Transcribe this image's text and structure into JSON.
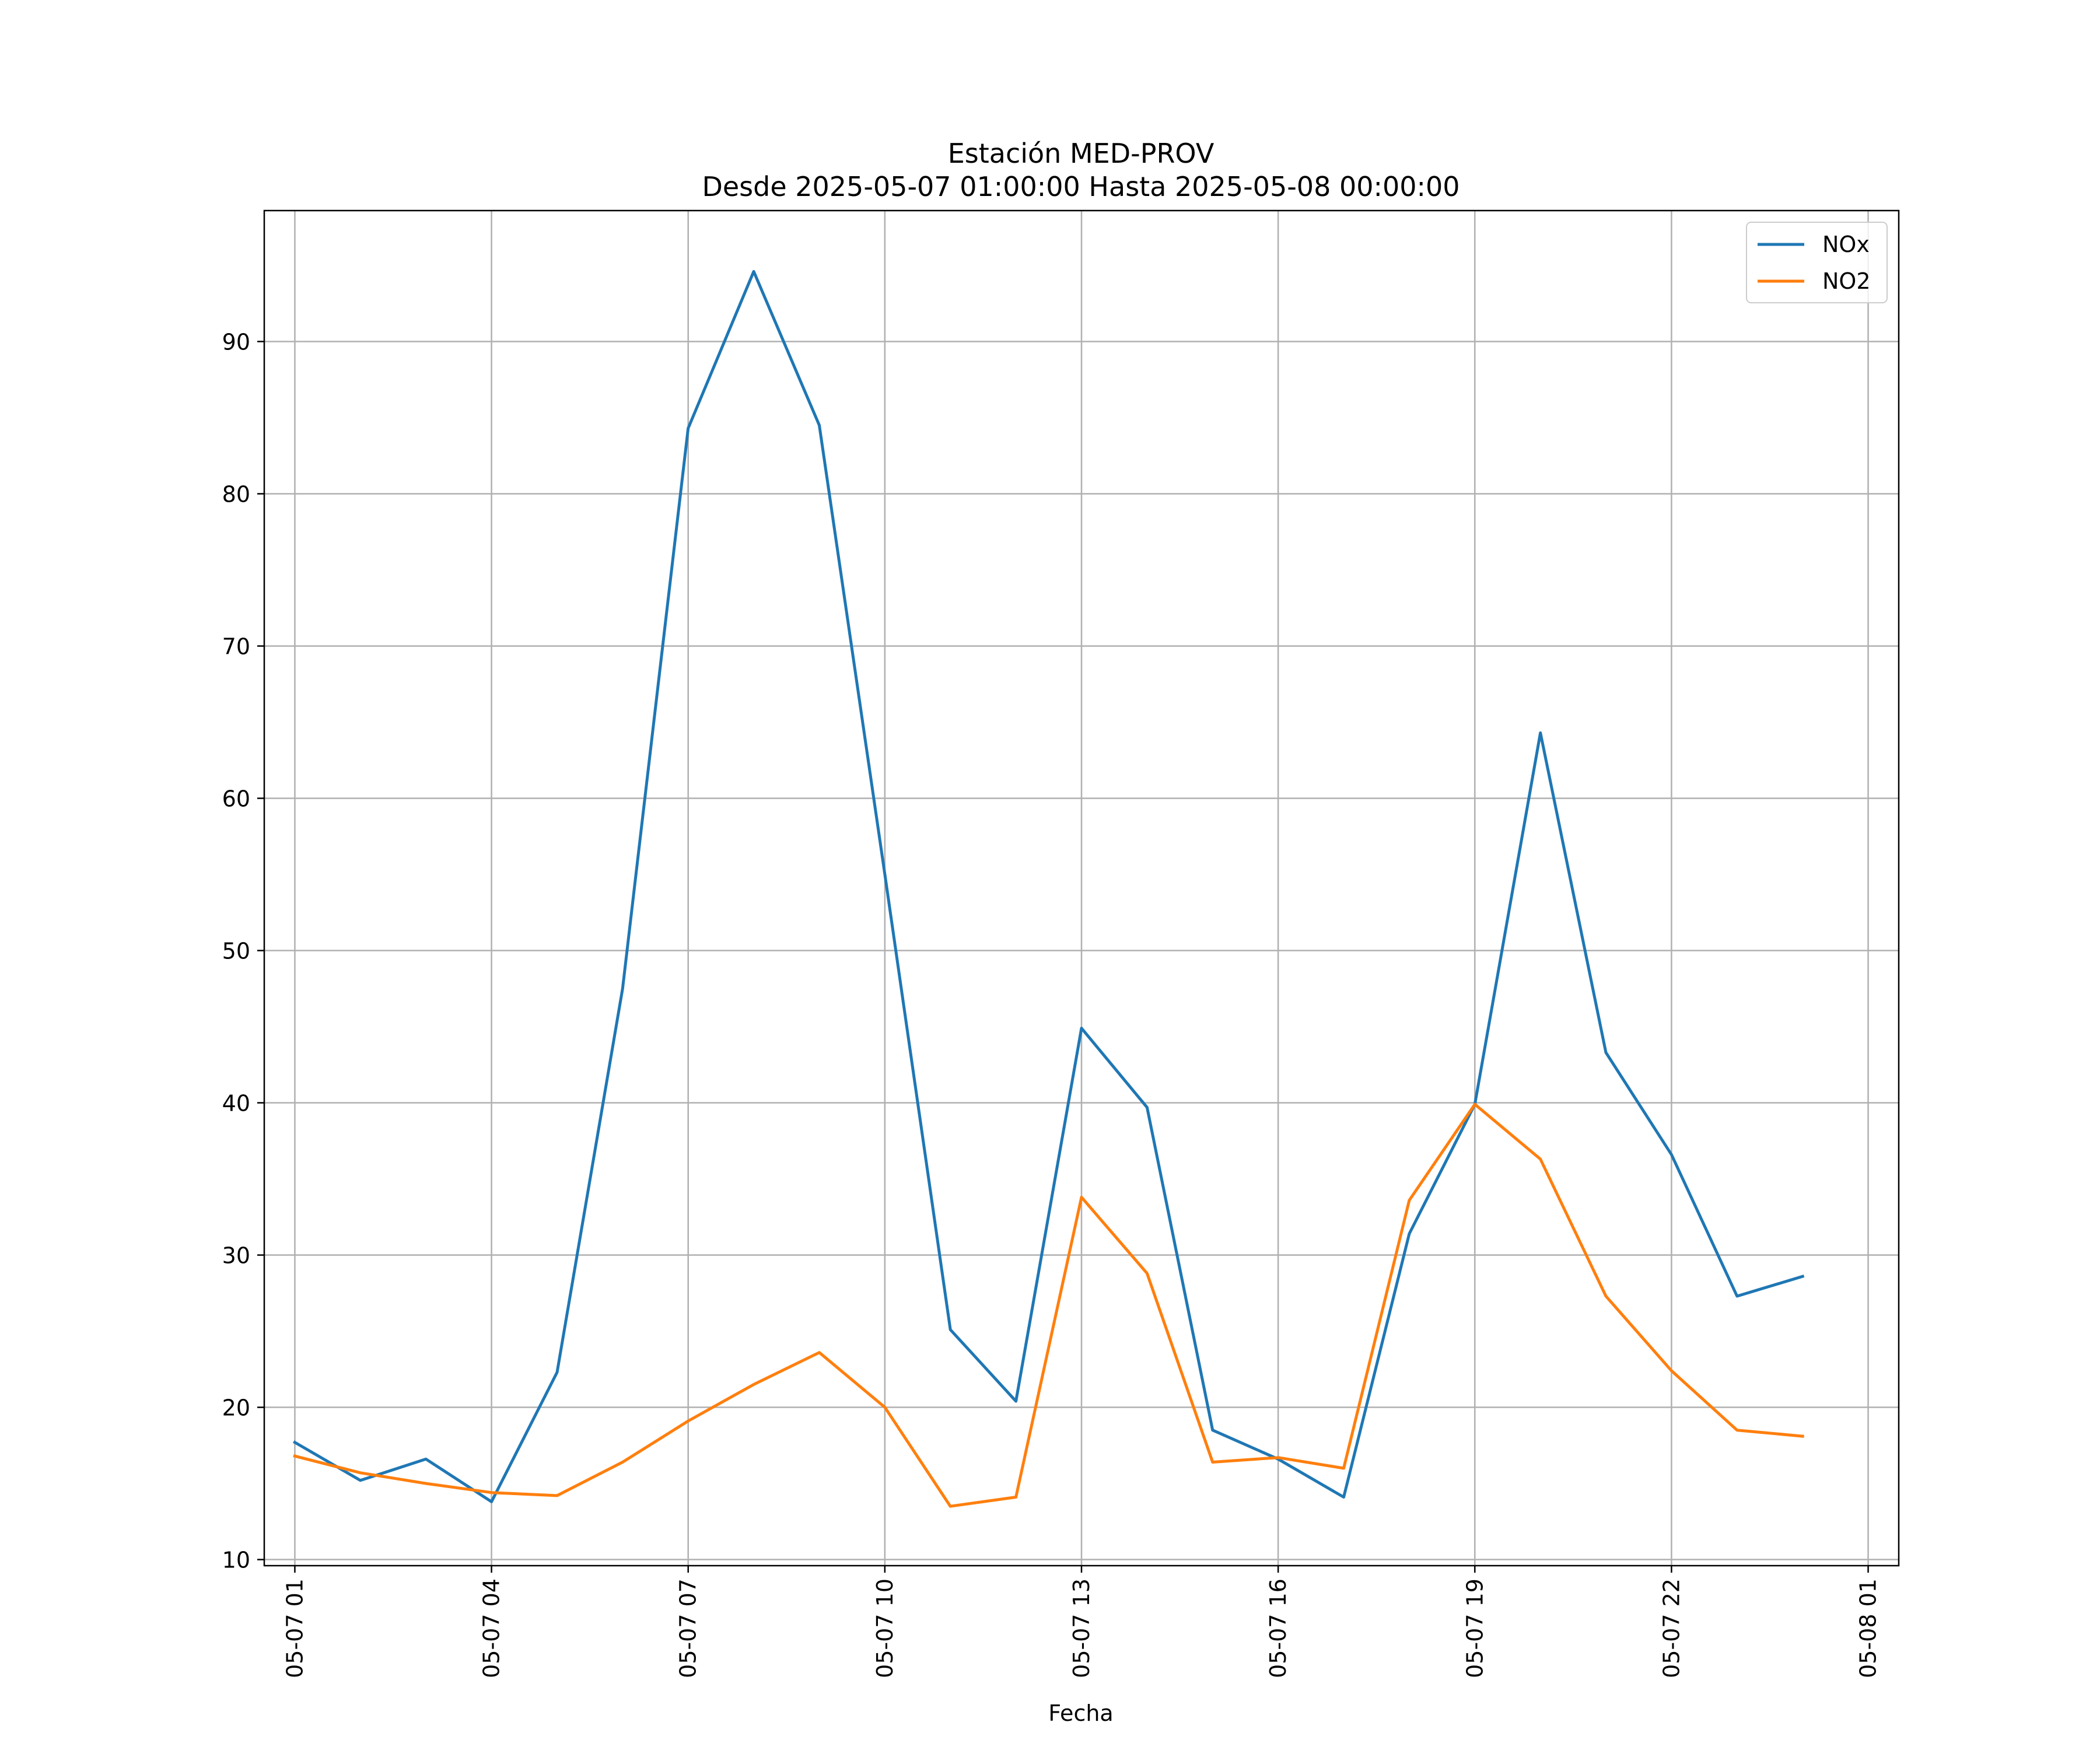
{
  "chart_data": {
    "type": "line",
    "title": "Estación MED-PROV",
    "subtitle": "Desde 2025-05-07 01:00:00 Hasta 2025-05-08 00:00:00",
    "xlabel": "Fecha",
    "ylabel": "",
    "x": [
      "2025-05-07 01:00",
      "2025-05-07 02:00",
      "2025-05-07 03:00",
      "2025-05-07 04:00",
      "2025-05-07 05:00",
      "2025-05-07 06:00",
      "2025-05-07 07:00",
      "2025-05-07 08:00",
      "2025-05-07 09:00",
      "2025-05-07 10:00",
      "2025-05-07 11:00",
      "2025-05-07 12:00",
      "2025-05-07 13:00",
      "2025-05-07 14:00",
      "2025-05-07 15:00",
      "2025-05-07 16:00",
      "2025-05-07 17:00",
      "2025-05-07 18:00",
      "2025-05-07 19:00",
      "2025-05-07 20:00",
      "2025-05-07 21:00",
      "2025-05-07 22:00",
      "2025-05-07 23:00",
      "2025-05-08 00:00"
    ],
    "series": [
      {
        "name": "NOx",
        "color": "#1f77b4",
        "values": [
          17.7,
          15.2,
          16.6,
          13.8,
          22.3,
          47.5,
          84.3,
          94.6,
          84.5,
          55.0,
          25.1,
          20.4,
          44.9,
          39.7,
          18.5,
          16.6,
          14.1,
          31.4,
          39.9,
          64.3,
          43.3,
          36.6,
          27.3,
          28.6
        ]
      },
      {
        "name": "NO2",
        "color": "#ff7f0e",
        "values": [
          16.8,
          15.7,
          15.0,
          14.4,
          14.2,
          16.4,
          19.1,
          21.5,
          23.6,
          20.0,
          13.5,
          14.1,
          33.8,
          28.8,
          16.4,
          16.7,
          16.0,
          33.6,
          39.9,
          36.3,
          27.3,
          22.4,
          18.5,
          18.1
        ]
      }
    ],
    "xlim": [
      "2025-05-07 00:32",
      "2025-05-08 01:28"
    ],
    "ylim": [
      9.6,
      98.6
    ],
    "x_ticks": [
      {
        "label": "05-07 01",
        "at": "2025-05-07 01:00"
      },
      {
        "label": "05-07 04",
        "at": "2025-05-07 04:00"
      },
      {
        "label": "05-07 07",
        "at": "2025-05-07 07:00"
      },
      {
        "label": "05-07 10",
        "at": "2025-05-07 10:00"
      },
      {
        "label": "05-07 13",
        "at": "2025-05-07 13:00"
      },
      {
        "label": "05-07 16",
        "at": "2025-05-07 16:00"
      },
      {
        "label": "05-07 19",
        "at": "2025-05-07 19:00"
      },
      {
        "label": "05-07 22",
        "at": "2025-05-07 22:00"
      },
      {
        "label": "05-08 01",
        "at": "2025-05-08 01:00"
      }
    ],
    "y_ticks": [
      10,
      20,
      30,
      40,
      50,
      60,
      70,
      80,
      90
    ],
    "grid": true,
    "legend_position": "top-right"
  }
}
